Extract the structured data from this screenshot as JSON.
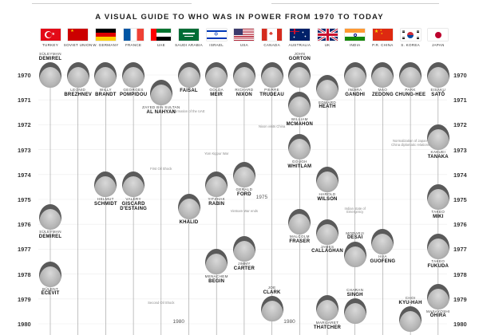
{
  "title": "A VISUAL GUIDE TO WHO WAS IN POWER FROM 1970 TO TODAY",
  "countries": [
    {
      "id": "turkey",
      "name": "TURKEY",
      "flag": "turkey"
    },
    {
      "id": "ussr",
      "name": "SOVIET UNION",
      "flag": "ussr"
    },
    {
      "id": "wgermany",
      "name": "W. GERMANY",
      "flag": "germany"
    },
    {
      "id": "france",
      "name": "FRANCE",
      "flag": "france"
    },
    {
      "id": "uae",
      "name": "UAE",
      "flag": "uae"
    },
    {
      "id": "saudi",
      "name": "SAUDI ARABIA",
      "flag": "saudi"
    },
    {
      "id": "israel",
      "name": "ISRAEL",
      "flag": "israel"
    },
    {
      "id": "usa",
      "name": "USA",
      "flag": "usa"
    },
    {
      "id": "canada",
      "name": "CANADA",
      "flag": "canada"
    },
    {
      "id": "australia",
      "name": "AUSTRALIA",
      "flag": "australia"
    },
    {
      "id": "uk",
      "name": "UK",
      "flag": "uk"
    },
    {
      "id": "india",
      "name": "INDIA",
      "flag": "india"
    },
    {
      "id": "china",
      "name": "P.R. CHINA",
      "flag": "china"
    },
    {
      "id": "skorea",
      "name": "S. KOREA",
      "flag": "skorea"
    },
    {
      "id": "japan",
      "name": "JAPAN",
      "flag": "japan"
    }
  ],
  "years": [
    "1970",
    "1971",
    "1972",
    "1973",
    "1974",
    "1975",
    "1976",
    "1977",
    "1978",
    "1979",
    "1980"
  ],
  "leaders": [
    {
      "country": "turkey",
      "first": "SÜLEYMAN",
      "last": "DEMIREL",
      "start": 1970.0,
      "label": "above"
    },
    {
      "country": "turkey",
      "first": "SÜLEYMAN",
      "last": "DEMIREL",
      "start": 1975.7,
      "label": "below"
    },
    {
      "country": "turkey",
      "first": "BÜLENT",
      "last": "ECEVIT",
      "start": 1978.0,
      "label": "below"
    },
    {
      "country": "ussr",
      "first": "LEONID",
      "last": "BREZHNEV",
      "start": 1970.0,
      "label": "below"
    },
    {
      "country": "wgermany",
      "first": "WILLY",
      "last": "BRANDT",
      "start": 1970.0,
      "label": "below"
    },
    {
      "country": "wgermany",
      "first": "HELMUT",
      "last": "SCHMIDT",
      "start": 1974.4,
      "label": "below"
    },
    {
      "country": "france",
      "first": "GEORGES",
      "last": "POMPIDOU",
      "start": 1970.0,
      "label": "below"
    },
    {
      "country": "france",
      "first": "VALÉRY",
      "last": "GISCARD D'ESTAING",
      "start": 1974.4,
      "label": "below"
    },
    {
      "country": "uae",
      "first": "ZAYED BIN SULTAN",
      "last": "AL NAHYAN",
      "start": 1970.7,
      "label": "below"
    },
    {
      "country": "saudi",
      "first": "",
      "last": "FAISAL",
      "start": 1970.0,
      "label": "below"
    },
    {
      "country": "saudi",
      "first": "",
      "last": "KHALID",
      "start": 1975.3,
      "label": "below"
    },
    {
      "country": "israel",
      "first": "GOLDA",
      "last": "MEIR",
      "start": 1970.0,
      "label": "below"
    },
    {
      "country": "israel",
      "first": "YITZHAK",
      "last": "RABIN",
      "start": 1974.4,
      "label": "below"
    },
    {
      "country": "israel",
      "first": "MENACHEM",
      "last": "BEGIN",
      "start": 1977.5,
      "label": "below"
    },
    {
      "country": "usa",
      "first": "RICHARD",
      "last": "NIXON",
      "start": 1970.0,
      "label": "below"
    },
    {
      "country": "usa",
      "first": "GERALD",
      "last": "FORD",
      "start": 1974.0,
      "label": "below"
    },
    {
      "country": "usa",
      "first": "JIMMY",
      "last": "CARTER",
      "start": 1977.0,
      "label": "below"
    },
    {
      "country": "canada",
      "first": "PIERRE",
      "last": "TRUDEAU",
      "start": 1970.0,
      "label": "below"
    },
    {
      "country": "canada",
      "first": "JOE",
      "last": "CLARK",
      "start": 1979.4,
      "label": "above"
    },
    {
      "country": "australia",
      "first": "JOHN",
      "last": "GORTON",
      "start": 1970.0,
      "label": "above"
    },
    {
      "country": "australia",
      "first": "WILLIAM",
      "last": "MCMAHON",
      "start": 1971.2,
      "label": "below"
    },
    {
      "country": "australia",
      "first": "GOUGH",
      "last": "WHITLAM",
      "start": 1972.9,
      "label": "below"
    },
    {
      "country": "australia",
      "first": "MALCOLM",
      "last": "FRASER",
      "start": 1975.9,
      "label": "below"
    },
    {
      "country": "uk",
      "first": "EDWARD",
      "last": "HEATH",
      "start": 1970.5,
      "label": "below"
    },
    {
      "country": "uk",
      "first": "HAROLD",
      "last": "WILSON",
      "start": 1974.2,
      "label": "below"
    },
    {
      "country": "uk",
      "first": "JAMES",
      "last": "CALLAGHAN",
      "start": 1976.3,
      "label": "below"
    },
    {
      "country": "uk",
      "first": "MARGARET",
      "last": "THATCHER",
      "start": 1979.35,
      "label": "below"
    },
    {
      "country": "india",
      "first": "INDIRA",
      "last": "GANDHI",
      "start": 1970.0,
      "label": "below"
    },
    {
      "country": "india",
      "first": "MORARJI",
      "last": "DESAI",
      "start": 1977.2,
      "label": "above"
    },
    {
      "country": "india",
      "first": "CHARAN",
      "last": "SINGH",
      "start": 1979.5,
      "label": "above"
    },
    {
      "country": "china",
      "first": "MAO",
      "last": "ZEDONG",
      "start": 1970.0,
      "label": "below"
    },
    {
      "country": "china",
      "first": "HUA",
      "last": "GUOFENG",
      "start": 1976.7,
      "label": "below"
    },
    {
      "country": "skorea",
      "first": "PARK",
      "last": "CHUNG-HEE",
      "start": 1970.0,
      "label": "below"
    },
    {
      "country": "skorea",
      "first": "CHOI",
      "last": "KYU-HAH",
      "start": 1979.8,
      "label": "above"
    },
    {
      "country": "japan",
      "first": "EISAKU",
      "last": "SATŌ",
      "start": 1970.0,
      "label": "below"
    },
    {
      "country": "japan",
      "first": "KAKUEI",
      "last": "TANAKA",
      "start": 1972.5,
      "label": "below"
    },
    {
      "country": "japan",
      "first": "TAKEO",
      "last": "MIKI",
      "start": 1974.9,
      "label": "below"
    },
    {
      "country": "japan",
      "first": "TAKEO",
      "last": "FUKUDA",
      "start": 1976.9,
      "label": "below"
    },
    {
      "country": "japan",
      "first": "MASAYOSHI",
      "last": "ŌHIRA",
      "start": 1978.9,
      "label": "below"
    }
  ],
  "events": [
    {
      "text": "Formation of the UAE",
      "year": 1971.6,
      "column": "saudi"
    },
    {
      "text": "Nixon visits China",
      "year": 1972.2,
      "column": "canada"
    },
    {
      "text": "Normalization of Japan-China diplomatic relations",
      "year": 1972.8,
      "column": "skorea"
    },
    {
      "text": "Yom Kippur War",
      "year": 1973.3,
      "column": "israel"
    },
    {
      "text": "First Oil Shock",
      "year": 1973.9,
      "column": "uae"
    },
    {
      "text": "Vietnam War ends",
      "year": 1975.6,
      "column": "usa"
    },
    {
      "text": "Indian state of Emergency",
      "year": 1975.5,
      "column": "india"
    },
    {
      "text": "Second Oil Shock",
      "year": 1979.3,
      "column": "uae"
    }
  ],
  "milestones": [
    {
      "text": "1975",
      "year": 1975.0,
      "column": "canada"
    },
    {
      "text": "1980",
      "year": 1980.0,
      "column": "saudi"
    },
    {
      "text": "1980",
      "year": 1980.0,
      "column": "australia"
    }
  ]
}
